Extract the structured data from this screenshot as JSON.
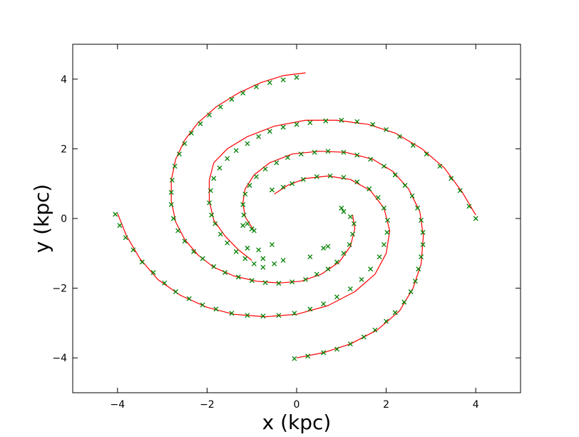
{
  "chart_data": {
    "type": "scatter",
    "title": "",
    "xlabel": "x (kpc)",
    "ylabel": "y (kpc)",
    "xlim": [
      -5,
      5
    ],
    "ylim": [
      -5,
      5
    ],
    "x_ticks": [
      -4,
      -2,
      0,
      2,
      4
    ],
    "y_ticks": [
      -4,
      -2,
      0,
      2,
      4
    ],
    "x_tick_labels": [
      "−4",
      "−2",
      "0",
      "2",
      "4"
    ],
    "y_tick_labels": [
      "−4",
      "−2",
      "0",
      "2",
      "4"
    ],
    "grid": false,
    "legend": "none",
    "colors": {
      "model": "#ff0000",
      "data": "#008000",
      "axes": "#000000"
    },
    "series": [
      {
        "type": "line",
        "color": "#ff0000",
        "arms": [
          {
            "points": [
              [
                0.2,
                4.18
              ],
              [
                -0.3,
                4.1
              ],
              [
                -0.8,
                3.9
              ],
              [
                -1.3,
                3.6
              ],
              [
                -1.8,
                3.2
              ],
              [
                -2.2,
                2.75
              ],
              [
                -2.5,
                2.25
              ],
              [
                -2.7,
                1.7
              ],
              [
                -2.8,
                1.1
              ],
              [
                -2.8,
                0.5
              ],
              [
                -2.7,
                -0.1
              ],
              [
                -2.5,
                -0.6
              ],
              [
                -2.2,
                -1.05
              ],
              [
                -1.85,
                -1.4
              ],
              [
                -1.4,
                -1.65
              ],
              [
                -0.9,
                -1.8
              ],
              [
                -0.4,
                -1.85
              ],
              [
                0.1,
                -1.8
              ],
              [
                0.55,
                -1.6
              ],
              [
                0.95,
                -1.25
              ],
              [
                1.2,
                -0.8
              ],
              [
                1.3,
                -0.3
              ],
              [
                1.25,
                0.1
              ]
            ]
          },
          {
            "points": [
              [
                4.0,
                0.1
              ],
              [
                3.7,
                0.75
              ],
              [
                3.3,
                1.45
              ],
              [
                2.8,
                2.0
              ],
              [
                2.2,
                2.45
              ],
              [
                1.6,
                2.7
              ],
              [
                0.9,
                2.82
              ],
              [
                0.2,
                2.82
              ],
              [
                -0.5,
                2.65
              ],
              [
                -1.1,
                2.35
              ],
              [
                -1.55,
                2.0
              ],
              [
                -1.85,
                1.6
              ],
              [
                -1.95,
                1.1
              ],
              [
                -1.95,
                0.5
              ],
              [
                -1.85,
                -0.05
              ],
              [
                -1.6,
                -0.5
              ],
              [
                -1.3,
                -0.9
              ],
              [
                -1.0,
                -1.2
              ]
            ]
          },
          {
            "points": [
              [
                0.0,
                -4.0
              ],
              [
                0.6,
                -3.85
              ],
              [
                1.2,
                -3.6
              ],
              [
                1.8,
                -3.2
              ],
              [
                2.3,
                -2.65
              ],
              [
                2.6,
                -2.0
              ],
              [
                2.78,
                -1.3
              ],
              [
                2.83,
                -0.5
              ],
              [
                2.75,
                0.2
              ],
              [
                2.5,
                0.85
              ],
              [
                2.15,
                1.35
              ],
              [
                1.7,
                1.7
              ],
              [
                1.1,
                1.9
              ],
              [
                0.5,
                1.93
              ],
              [
                -0.1,
                1.85
              ],
              [
                -0.6,
                1.6
              ],
              [
                -0.95,
                1.25
              ],
              [
                -1.15,
                0.85
              ],
              [
                -1.2,
                0.45
              ],
              [
                -1.15,
                0.05
              ],
              [
                -0.95,
                -0.35
              ]
            ]
          },
          {
            "points": [
              [
                -4.0,
                0.15
              ],
              [
                -3.8,
                -0.5
              ],
              [
                -3.5,
                -1.15
              ],
              [
                -3.1,
                -1.75
              ],
              [
                -2.6,
                -2.2
              ],
              [
                -2.0,
                -2.55
              ],
              [
                -1.4,
                -2.75
              ],
              [
                -0.7,
                -2.82
              ],
              [
                0.0,
                -2.75
              ],
              [
                0.7,
                -2.5
              ],
              [
                1.3,
                -2.1
              ],
              [
                1.75,
                -1.6
              ],
              [
                2.0,
                -1.0
              ],
              [
                2.08,
                -0.35
              ],
              [
                1.95,
                0.3
              ],
              [
                1.65,
                0.8
              ],
              [
                1.2,
                1.12
              ],
              [
                0.7,
                1.22
              ],
              [
                0.2,
                1.15
              ],
              [
                -0.2,
                0.95
              ],
              [
                -0.5,
                0.7
              ]
            ]
          }
        ]
      },
      {
        "type": "scatter",
        "marker": "x",
        "color": "#008000",
        "arms": [
          {
            "points": [
              [
                0.0,
                4.05
              ],
              [
                -0.3,
                3.98
              ],
              [
                -0.6,
                3.9
              ],
              [
                -0.9,
                3.78
              ],
              [
                -1.2,
                3.6
              ],
              [
                -1.45,
                3.42
              ],
              [
                -1.7,
                3.2
              ],
              [
                -1.95,
                2.97
              ],
              [
                -2.15,
                2.72
              ],
              [
                -2.35,
                2.45
              ],
              [
                -2.5,
                2.15
              ],
              [
                -2.62,
                1.85
              ],
              [
                -2.72,
                1.5
              ],
              [
                -2.78,
                1.1
              ],
              [
                -2.8,
                0.75
              ],
              [
                -2.8,
                0.4
              ],
              [
                -2.75,
                0.0
              ],
              [
                -2.65,
                -0.35
              ],
              [
                -2.5,
                -0.65
              ],
              [
                -2.3,
                -0.95
              ],
              [
                -2.1,
                -1.15
              ],
              [
                -1.85,
                -1.38
              ],
              [
                -1.6,
                -1.55
              ],
              [
                -1.3,
                -1.68
              ],
              [
                -1.0,
                -1.78
              ],
              [
                -0.7,
                -1.84
              ],
              [
                -0.4,
                -1.86
              ],
              [
                -0.1,
                -1.82
              ],
              [
                0.2,
                -1.75
              ],
              [
                0.45,
                -1.6
              ],
              [
                0.7,
                -1.45
              ],
              [
                0.9,
                -1.25
              ],
              [
                1.05,
                -1.0
              ],
              [
                1.18,
                -0.75
              ],
              [
                1.25,
                -0.45
              ],
              [
                1.28,
                -0.15
              ],
              [
                1.2,
                0.05
              ]
            ]
          },
          {
            "points": [
              [
                4.0,
                0.0
              ],
              [
                3.85,
                0.35
              ],
              [
                3.65,
                0.8
              ],
              [
                3.45,
                1.15
              ],
              [
                3.2,
                1.5
              ],
              [
                2.9,
                1.85
              ],
              [
                2.6,
                2.1
              ],
              [
                2.3,
                2.35
              ],
              [
                2.0,
                2.55
              ],
              [
                1.7,
                2.7
              ],
              [
                1.35,
                2.78
              ],
              [
                1.0,
                2.82
              ],
              [
                0.65,
                2.8
              ],
              [
                0.3,
                2.75
              ],
              [
                0.0,
                2.7
              ],
              [
                -0.3,
                2.62
              ],
              [
                -0.6,
                2.5
              ],
              [
                -0.85,
                2.35
              ],
              [
                -1.1,
                2.15
              ],
              [
                -1.35,
                1.95
              ],
              [
                -1.55,
                1.72
              ],
              [
                -1.72,
                1.45
              ],
              [
                -1.85,
                1.15
              ],
              [
                -1.92,
                0.8
              ],
              [
                -1.95,
                0.45
              ],
              [
                -1.9,
                0.1
              ],
              [
                -1.82,
                -0.15
              ],
              [
                -1.7,
                -0.45
              ],
              [
                -1.55,
                -0.7
              ],
              [
                -1.35,
                -0.95
              ],
              [
                -1.15,
                -1.15
              ],
              [
                -0.95,
                -1.3
              ],
              [
                -0.75,
                -1.4
              ],
              [
                -0.5,
                -1.3
              ],
              [
                -0.3,
                -1.2
              ]
            ]
          },
          {
            "points": [
              [
                -0.05,
                -4.02
              ],
              [
                0.25,
                -3.95
              ],
              [
                0.6,
                -3.85
              ],
              [
                0.9,
                -3.75
              ],
              [
                1.2,
                -3.6
              ],
              [
                1.5,
                -3.4
              ],
              [
                1.75,
                -3.2
              ],
              [
                2.0,
                -2.95
              ],
              [
                2.2,
                -2.7
              ],
              [
                2.4,
                -2.4
              ],
              [
                2.55,
                -2.1
              ],
              [
                2.65,
                -1.8
              ],
              [
                2.72,
                -1.45
              ],
              [
                2.78,
                -1.1
              ],
              [
                2.82,
                -0.75
              ],
              [
                2.82,
                -0.4
              ],
              [
                2.78,
                -0.05
              ],
              [
                2.7,
                0.3
              ],
              [
                2.58,
                0.65
              ],
              [
                2.42,
                0.95
              ],
              [
                2.2,
                1.25
              ],
              [
                1.95,
                1.5
              ],
              [
                1.65,
                1.7
              ],
              [
                1.35,
                1.82
              ],
              [
                1.05,
                1.9
              ],
              [
                0.7,
                1.93
              ],
              [
                0.4,
                1.9
              ],
              [
                0.1,
                1.85
              ],
              [
                -0.2,
                1.75
              ],
              [
                -0.45,
                1.6
              ],
              [
                -0.7,
                1.42
              ],
              [
                -0.9,
                1.2
              ],
              [
                -1.05,
                0.95
              ],
              [
                -1.15,
                0.7
              ],
              [
                -1.2,
                0.4
              ],
              [
                -1.18,
                0.1
              ],
              [
                -1.1,
                -0.15
              ],
              [
                -0.95,
                -0.35
              ]
            ]
          },
          {
            "points": [
              [
                -4.05,
                0.12
              ],
              [
                -3.95,
                -0.2
              ],
              [
                -3.82,
                -0.55
              ],
              [
                -3.65,
                -0.9
              ],
              [
                -3.45,
                -1.25
              ],
              [
                -3.2,
                -1.55
              ],
              [
                -2.95,
                -1.85
              ],
              [
                -2.7,
                -2.1
              ],
              [
                -2.4,
                -2.3
              ],
              [
                -2.1,
                -2.48
              ],
              [
                -1.8,
                -2.6
              ],
              [
                -1.45,
                -2.72
              ],
              [
                -1.1,
                -2.78
              ],
              [
                -0.75,
                -2.8
              ],
              [
                -0.4,
                -2.78
              ],
              [
                -0.05,
                -2.72
              ],
              [
                0.3,
                -2.6
              ],
              [
                0.6,
                -2.45
              ],
              [
                0.9,
                -2.25
              ],
              [
                1.2,
                -2.02
              ],
              [
                1.45,
                -1.75
              ],
              [
                1.65,
                -1.45
              ],
              [
                1.85,
                -1.1
              ],
              [
                1.95,
                -0.75
              ],
              [
                2.02,
                -0.4
              ],
              [
                2.03,
                -0.05
              ],
              [
                1.95,
                0.3
              ],
              [
                1.82,
                0.6
              ],
              [
                1.62,
                0.85
              ],
              [
                1.35,
                1.05
              ],
              [
                1.05,
                1.18
              ],
              [
                0.75,
                1.22
              ],
              [
                0.45,
                1.2
              ],
              [
                0.15,
                1.12
              ],
              [
                -0.1,
                1.0
              ],
              [
                -0.3,
                0.9
              ],
              [
                -0.55,
                0.82
              ]
            ]
          },
          {
            "points": [
              [
                -1.1,
                -0.85
              ],
              [
                -0.75,
                -1.15
              ],
              [
                -0.55,
                -0.75
              ],
              [
                -0.85,
                -0.9
              ],
              [
                0.3,
                -1.1
              ],
              [
                0.6,
                -0.85
              ],
              [
                0.7,
                -0.8
              ],
              [
                1.0,
                0.3
              ],
              [
                1.05,
                0.2
              ],
              [
                -1.2,
                -0.2
              ],
              [
                -1.0,
                -0.3
              ]
            ]
          }
        ]
      }
    ]
  }
}
